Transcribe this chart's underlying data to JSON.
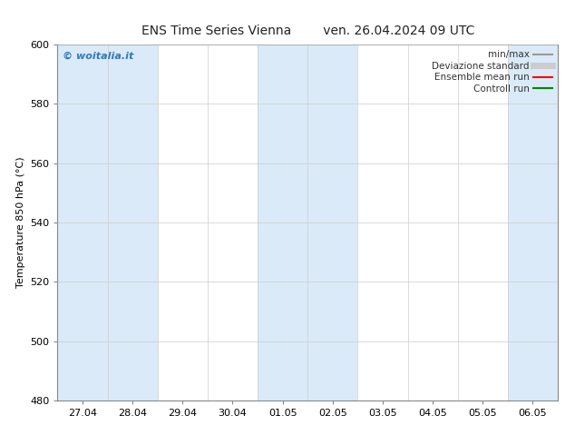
{
  "title_left": "ENS Time Series Vienna",
  "title_right": "ven. 26.04.2024 09 UTC",
  "ylabel": "Temperature 850 hPa (°C)",
  "ylim": [
    480,
    600
  ],
  "yticks": [
    480,
    500,
    520,
    540,
    560,
    580,
    600
  ],
  "xtick_labels": [
    "27.04",
    "28.04",
    "29.04",
    "30.04",
    "01.05",
    "02.05",
    "03.05",
    "04.05",
    "05.05",
    "06.05"
  ],
  "bg_color": "#ffffff",
  "plot_bg_color": "#ffffff",
  "shaded_columns": [
    0,
    1,
    4,
    5,
    9
  ],
  "shaded_color": "#daeaf8",
  "watermark_text": "© woitalia.it",
  "watermark_color": "#3377bb",
  "legend_entries": [
    {
      "label": "min/max",
      "color": "#999999",
      "lw": 1.5
    },
    {
      "label": "Deviazione standard",
      "color": "#cccccc",
      "lw": 5
    },
    {
      "label": "Ensemble mean run",
      "color": "#ff0000",
      "lw": 1.5
    },
    {
      "label": "Controll run",
      "color": "#008800",
      "lw": 1.5
    }
  ],
  "n_cols": 10,
  "title_fontsize": 10,
  "tick_fontsize": 8,
  "ylabel_fontsize": 8
}
